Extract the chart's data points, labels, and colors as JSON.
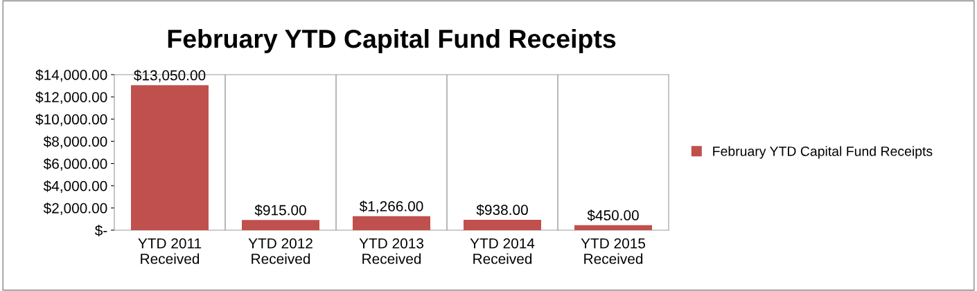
{
  "chart_data": {
    "type": "bar",
    "title": "February YTD Capital Fund Receipts",
    "categories": [
      "YTD 2011\nReceived",
      "YTD 2012\nReceived",
      "YTD 2013\nReceived",
      "YTD 2014\nReceived",
      "YTD 2015\nReceived"
    ],
    "series": [
      {
        "name": "February YTD Capital Fund Receipts",
        "color": "#c0504d",
        "values": [
          13050,
          915,
          1266,
          938,
          450
        ],
        "value_labels": [
          "$13,050.00",
          "$915.00",
          "$1,266.00",
          "$938.00",
          "$450.00"
        ]
      }
    ],
    "ylim": [
      0,
      14000
    ],
    "yticks": [
      {
        "value": 0,
        "label": "$-"
      },
      {
        "value": 2000,
        "label": "$2,000.00"
      },
      {
        "value": 4000,
        "label": "$4,000.00"
      },
      {
        "value": 6000,
        "label": "$6,000.00"
      },
      {
        "value": 8000,
        "label": "$8,000.00"
      },
      {
        "value": 10000,
        "label": "$10,000.00"
      },
      {
        "value": 12000,
        "label": "$12,000.00"
      },
      {
        "value": 14000,
        "label": "$14,000.00"
      }
    ],
    "grid": "x",
    "legend": "right"
  }
}
